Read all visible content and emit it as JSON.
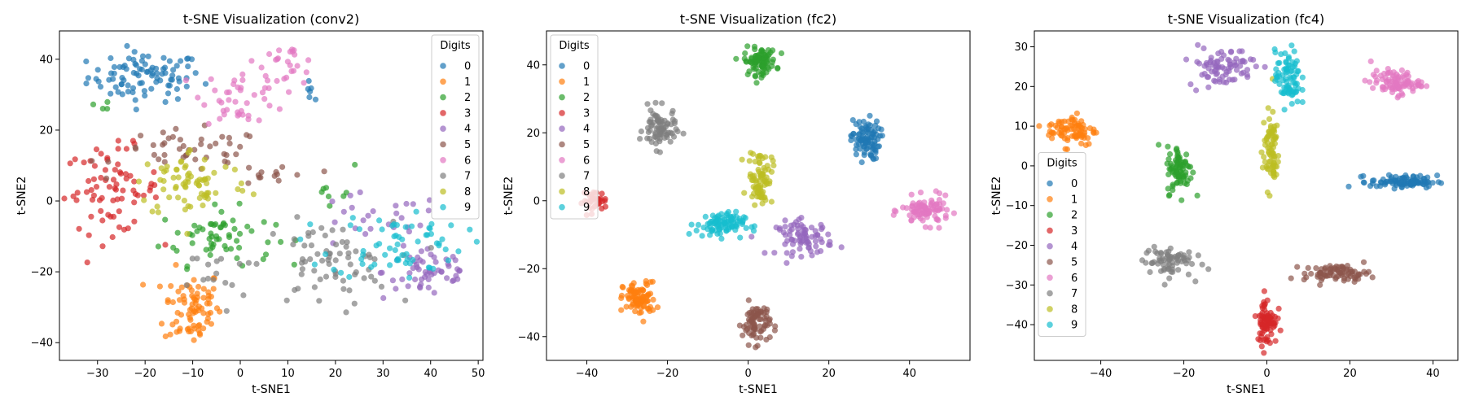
{
  "chart_data": [
    {
      "type": "scatter",
      "title": "t-SNE Visualization (conv2)",
      "xlabel": "t-SNE1",
      "ylabel": "t-SNE2",
      "xlim": [
        -38,
        51
      ],
      "ylim": [
        -45,
        48
      ],
      "xticks": [
        -30,
        -20,
        -10,
        0,
        10,
        20,
        30,
        40,
        50
      ],
      "yticks": [
        -40,
        -20,
        0,
        20,
        40
      ],
      "legend": {
        "title": "Digits",
        "position": "top-right"
      },
      "clusters": [
        {
          "label": "0",
          "color": "#1f77b4",
          "blobs": [
            {
              "cx": -20,
              "cy": 35,
              "sx": 6,
              "sy": 3.5,
              "n": 90
            },
            {
              "cx": 15,
              "cy": 30,
              "sx": 0.8,
              "sy": 2,
              "n": 6
            }
          ]
        },
        {
          "label": "1",
          "color": "#ff7f0e",
          "blobs": [
            {
              "cx": -10,
              "cy": -30,
              "sx": 3,
              "sy": 5.5,
              "n": 80
            }
          ]
        },
        {
          "label": "2",
          "color": "#2ca02c",
          "blobs": [
            {
              "cx": -5,
              "cy": -10,
              "sx": 6,
              "sy": 4,
              "n": 60
            },
            {
              "cx": 20,
              "cy": 5,
              "sx": 2,
              "sy": 3,
              "n": 8
            },
            {
              "cx": -28,
              "cy": 27,
              "sx": 1,
              "sy": 1,
              "n": 4
            }
          ]
        },
        {
          "label": "3",
          "color": "#d62728",
          "blobs": [
            {
              "cx": -27,
              "cy": 3,
              "sx": 5,
              "sy": 6,
              "n": 75
            }
          ]
        },
        {
          "label": "4",
          "color": "#9467bd",
          "blobs": [
            {
              "cx": 40,
              "cy": -20,
              "sx": 5,
              "sy": 4,
              "n": 55
            },
            {
              "cx": 27,
              "cy": -6,
              "sx": 8,
              "sy": 4,
              "n": 25
            }
          ]
        },
        {
          "label": "5",
          "color": "#8c564b",
          "blobs": [
            {
              "cx": -10,
              "cy": 14,
              "sx": 8,
              "sy": 3,
              "n": 45
            },
            {
              "cx": 8,
              "cy": 7,
              "sx": 4,
              "sy": 2,
              "n": 12
            }
          ]
        },
        {
          "label": "6",
          "color": "#e377c2",
          "blobs": [
            {
              "cx": 0,
              "cy": 30,
              "sx": 4,
              "sy": 4,
              "n": 40
            },
            {
              "cx": 10,
              "cy": 38,
              "sx": 3,
              "sy": 3,
              "n": 25
            }
          ]
        },
        {
          "label": "7",
          "color": "#7f7f7f",
          "blobs": [
            {
              "cx": 18,
              "cy": -18,
              "sx": 7,
              "sy": 6,
              "n": 70
            },
            {
              "cx": -5,
              "cy": -22,
              "sx": 3,
              "sy": 5,
              "n": 15
            }
          ]
        },
        {
          "label": "8",
          "color": "#bcbd22",
          "blobs": [
            {
              "cx": -10,
              "cy": 5,
              "sx": 6,
              "sy": 5,
              "n": 70
            }
          ]
        },
        {
          "label": "9",
          "color": "#17becf",
          "blobs": [
            {
              "cx": 33,
              "cy": -12,
              "sx": 7,
              "sy": 5,
              "n": 65
            }
          ]
        }
      ]
    },
    {
      "type": "scatter",
      "title": "t-SNE Visualization (fc2)",
      "xlabel": "t-SNE1",
      "ylabel": "t-SNE2",
      "xlim": [
        -50,
        55
      ],
      "ylim": [
        -47,
        50
      ],
      "xticks": [
        -40,
        -20,
        0,
        20,
        40
      ],
      "yticks": [
        -40,
        -20,
        0,
        20,
        40
      ],
      "legend": {
        "title": "Digits",
        "position": "top-left"
      },
      "clusters": [
        {
          "label": "0",
          "color": "#1f77b4",
          "blobs": [
            {
              "cx": 29,
              "cy": 18,
              "sx": 1.8,
              "sy": 3,
              "n": 90
            }
          ]
        },
        {
          "label": "1",
          "color": "#ff7f0e",
          "blobs": [
            {
              "cx": -27,
              "cy": -29,
              "sx": 2,
              "sy": 2.5,
              "n": 90
            }
          ]
        },
        {
          "label": "2",
          "color": "#2ca02c",
          "blobs": [
            {
              "cx": 3,
              "cy": 41,
              "sx": 2,
              "sy": 2,
              "n": 90
            }
          ]
        },
        {
          "label": "3",
          "color": "#d62728",
          "blobs": [
            {
              "cx": -38,
              "cy": 0,
              "sx": 1.5,
              "sy": 1.5,
              "n": 40
            }
          ]
        },
        {
          "label": "4",
          "color": "#9467bd",
          "blobs": [
            {
              "cx": 14,
              "cy": -11,
              "sx": 3.5,
              "sy": 2.5,
              "n": 80
            }
          ]
        },
        {
          "label": "5",
          "color": "#8c564b",
          "blobs": [
            {
              "cx": 2,
              "cy": -36,
              "sx": 1.7,
              "sy": 3,
              "n": 80
            }
          ]
        },
        {
          "label": "6",
          "color": "#e377c2",
          "blobs": [
            {
              "cx": 44,
              "cy": -3,
              "sx": 3,
              "sy": 2,
              "n": 90
            }
          ]
        },
        {
          "label": "7",
          "color": "#7f7f7f",
          "blobs": [
            {
              "cx": -22,
              "cy": 21,
              "sx": 2,
              "sy": 3,
              "n": 80
            }
          ]
        },
        {
          "label": "8",
          "color": "#bcbd22",
          "blobs": [
            {
              "cx": 3,
              "cy": 7,
              "sx": 1.5,
              "sy": 4,
              "n": 80
            }
          ]
        },
        {
          "label": "9",
          "color": "#17becf",
          "blobs": [
            {
              "cx": -7,
              "cy": -7,
              "sx": 3,
              "sy": 1.8,
              "n": 90
            }
          ]
        }
      ]
    },
    {
      "type": "scatter",
      "title": "t-SNE Visualization (fc4)",
      "xlabel": "t-SNE1",
      "ylabel": "t-SNE2",
      "xlim": [
        -56,
        46
      ],
      "ylim": [
        -49,
        34
      ],
      "xticks": [
        -40,
        -20,
        0,
        20,
        40
      ],
      "yticks": [
        -40,
        -30,
        -20,
        -10,
        0,
        10,
        20,
        30
      ],
      "legend": {
        "title": "Digits",
        "position": "center-left"
      },
      "clusters": [
        {
          "label": "0",
          "color": "#1f77b4",
          "blobs": [
            {
              "cx": 33,
              "cy": -4,
              "sx": 4,
              "sy": 0.8,
              "n": 90
            }
          ]
        },
        {
          "label": "1",
          "color": "#ff7f0e",
          "blobs": [
            {
              "cx": -47,
              "cy": 9,
              "sx": 3,
              "sy": 2,
              "n": 80
            }
          ]
        },
        {
          "label": "2",
          "color": "#2ca02c",
          "blobs": [
            {
              "cx": -21,
              "cy": -1,
              "sx": 1.5,
              "sy": 3,
              "n": 80
            }
          ]
        },
        {
          "label": "3",
          "color": "#d62728",
          "blobs": [
            {
              "cx": 0,
              "cy": -39,
              "sx": 1.2,
              "sy": 3,
              "n": 80
            }
          ]
        },
        {
          "label": "4",
          "color": "#9467bd",
          "blobs": [
            {
              "cx": -11,
              "cy": 25,
              "sx": 4,
              "sy": 2.5,
              "n": 80
            }
          ]
        },
        {
          "label": "5",
          "color": "#8c564b",
          "blobs": [
            {
              "cx": 17,
              "cy": -27,
              "sx": 4,
              "sy": 1,
              "n": 80
            }
          ]
        },
        {
          "label": "6",
          "color": "#e377c2",
          "blobs": [
            {
              "cx": 31,
              "cy": 21,
              "sx": 3,
              "sy": 1.5,
              "n": 90
            }
          ]
        },
        {
          "label": "7",
          "color": "#7f7f7f",
          "blobs": [
            {
              "cx": -24,
              "cy": -24,
              "sx": 3,
              "sy": 2,
              "n": 70
            }
          ]
        },
        {
          "label": "8",
          "color": "#bcbd22",
          "blobs": [
            {
              "cx": 1,
              "cy": 4,
              "sx": 1,
              "sy": 5,
              "n": 80
            }
          ]
        },
        {
          "label": "9",
          "color": "#17becf",
          "blobs": [
            {
              "cx": 5,
              "cy": 22,
              "sx": 1.5,
              "sy": 3.5,
              "n": 80
            }
          ]
        }
      ]
    }
  ]
}
